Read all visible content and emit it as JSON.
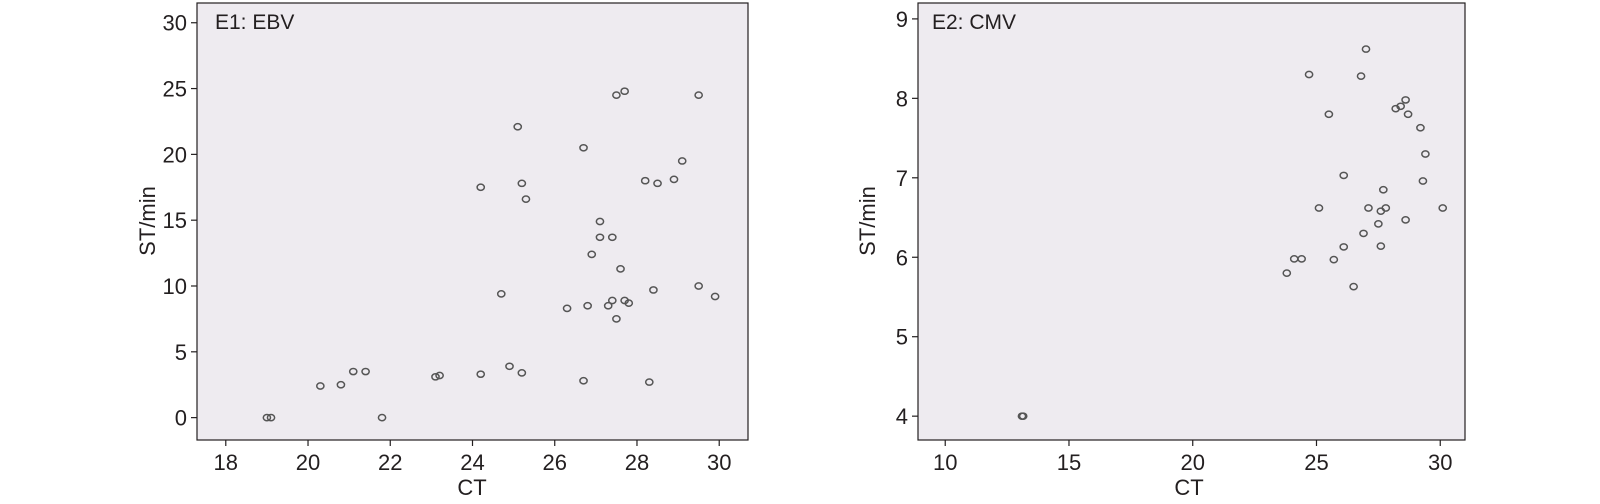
{
  "chart_data": [
    {
      "type": "scatter",
      "title": "E1: EBV",
      "xlabel": "CT",
      "ylabel": "ST/min",
      "xlim": [
        17.3,
        30.7
      ],
      "ylim": [
        -1.7,
        31.5
      ],
      "xticks": [
        18,
        20,
        22,
        24,
        26,
        28,
        30
      ],
      "yticks": [
        0,
        5,
        10,
        15,
        20,
        25,
        30
      ],
      "grid": false,
      "background": "#eeebf0",
      "marker_color": "#555555",
      "points": [
        {
          "x": 19.0,
          "y": 0.0
        },
        {
          "x": 19.1,
          "y": 0.0
        },
        {
          "x": 20.3,
          "y": 2.4
        },
        {
          "x": 20.8,
          "y": 2.5
        },
        {
          "x": 21.1,
          "y": 3.5
        },
        {
          "x": 21.4,
          "y": 3.5
        },
        {
          "x": 21.8,
          "y": 0.0
        },
        {
          "x": 23.1,
          "y": 3.1
        },
        {
          "x": 23.2,
          "y": 3.2
        },
        {
          "x": 24.2,
          "y": 3.3
        },
        {
          "x": 24.2,
          "y": 17.5
        },
        {
          "x": 24.7,
          "y": 9.4
        },
        {
          "x": 24.9,
          "y": 3.9
        },
        {
          "x": 25.1,
          "y": 22.1
        },
        {
          "x": 25.2,
          "y": 17.8
        },
        {
          "x": 25.2,
          "y": 3.4
        },
        {
          "x": 25.3,
          "y": 16.6
        },
        {
          "x": 26.3,
          "y": 8.3
        },
        {
          "x": 26.7,
          "y": 20.5
        },
        {
          "x": 26.7,
          "y": 2.8
        },
        {
          "x": 26.8,
          "y": 8.5
        },
        {
          "x": 26.9,
          "y": 12.4
        },
        {
          "x": 27.1,
          "y": 13.7
        },
        {
          "x": 27.1,
          "y": 14.9
        },
        {
          "x": 27.3,
          "y": 8.5
        },
        {
          "x": 27.4,
          "y": 13.7
        },
        {
          "x": 27.4,
          "y": 8.9
        },
        {
          "x": 27.5,
          "y": 24.5
        },
        {
          "x": 27.5,
          "y": 7.5
        },
        {
          "x": 27.6,
          "y": 11.3
        },
        {
          "x": 27.7,
          "y": 24.8
        },
        {
          "x": 27.7,
          "y": 8.9
        },
        {
          "x": 27.8,
          "y": 8.7
        },
        {
          "x": 28.2,
          "y": 18.0
        },
        {
          "x": 28.3,
          "y": 2.7
        },
        {
          "x": 28.4,
          "y": 9.7
        },
        {
          "x": 28.5,
          "y": 17.8
        },
        {
          "x": 28.9,
          "y": 18.1
        },
        {
          "x": 29.1,
          "y": 19.5
        },
        {
          "x": 29.5,
          "y": 24.5
        },
        {
          "x": 29.5,
          "y": 10.0
        },
        {
          "x": 29.9,
          "y": 9.2
        }
      ]
    },
    {
      "type": "scatter",
      "title": "E2: CMV",
      "xlabel": "CT",
      "ylabel": "ST/min",
      "xlim": [
        8.9,
        31.0
      ],
      "ylim": [
        3.7,
        9.2
      ],
      "xticks": [
        10,
        15,
        20,
        25,
        30
      ],
      "yticks": [
        4,
        5,
        6,
        7,
        8,
        9
      ],
      "grid": false,
      "background": "#eeebf0",
      "marker_color": "#555555",
      "points": [
        {
          "x": 13.1,
          "y": 4.0
        },
        {
          "x": 13.15,
          "y": 4.0
        },
        {
          "x": 23.8,
          "y": 5.8
        },
        {
          "x": 24.1,
          "y": 5.98
        },
        {
          "x": 24.4,
          "y": 5.98
        },
        {
          "x": 24.7,
          "y": 8.3
        },
        {
          "x": 25.1,
          "y": 6.62
        },
        {
          "x": 25.5,
          "y": 7.8
        },
        {
          "x": 25.7,
          "y": 5.97
        },
        {
          "x": 26.1,
          "y": 7.03
        },
        {
          "x": 26.1,
          "y": 6.13
        },
        {
          "x": 26.5,
          "y": 5.63
        },
        {
          "x": 26.8,
          "y": 8.28
        },
        {
          "x": 26.9,
          "y": 6.3
        },
        {
          "x": 27.0,
          "y": 8.62
        },
        {
          "x": 27.1,
          "y": 6.62
        },
        {
          "x": 27.5,
          "y": 6.42
        },
        {
          "x": 27.6,
          "y": 6.14
        },
        {
          "x": 27.6,
          "y": 6.58
        },
        {
          "x": 27.7,
          "y": 6.85
        },
        {
          "x": 27.8,
          "y": 6.62
        },
        {
          "x": 28.2,
          "y": 7.87
        },
        {
          "x": 28.4,
          "y": 7.9
        },
        {
          "x": 28.6,
          "y": 7.98
        },
        {
          "x": 28.6,
          "y": 6.47
        },
        {
          "x": 28.7,
          "y": 7.8
        },
        {
          "x": 29.2,
          "y": 7.63
        },
        {
          "x": 29.3,
          "y": 6.96
        },
        {
          "x": 29.4,
          "y": 7.3
        },
        {
          "x": 30.1,
          "y": 6.62
        }
      ]
    }
  ]
}
